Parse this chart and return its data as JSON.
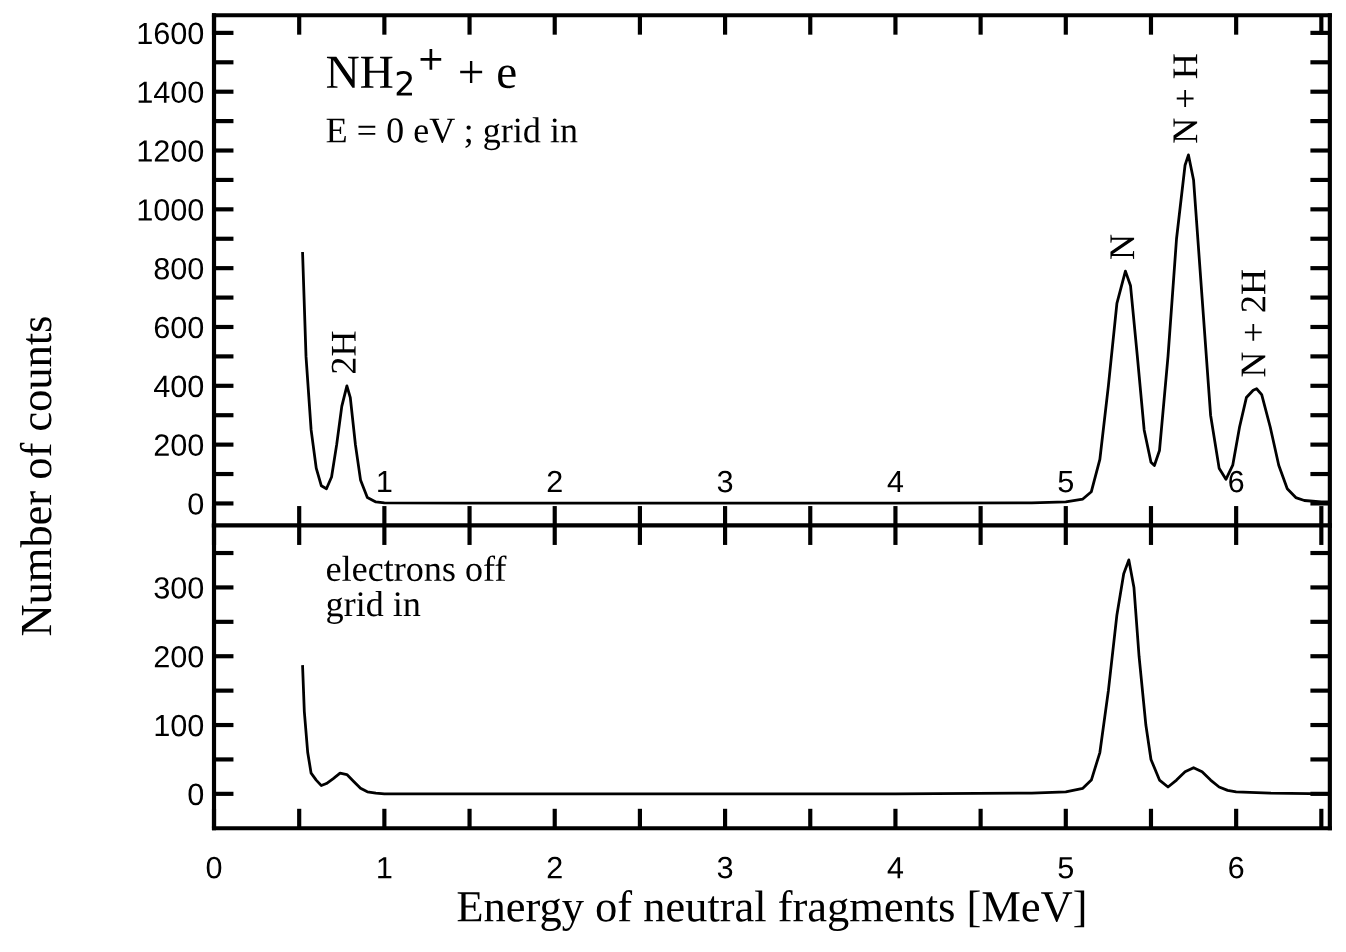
{
  "chart_data": [
    {
      "type": "line",
      "title": "NH$_{2}$$^{+}$ + e",
      "ylabel": "Number of counts",
      "annotations": [
        "E = 0 eV ; grid in",
        {
          "text": "2H",
          "x": 0.78,
          "y": 400
        },
        {
          "text": "N",
          "x": 5.35,
          "y": 790
        },
        {
          "text": "N + H",
          "x": 5.72,
          "y": 1185
        },
        {
          "text": "N + 2H",
          "x": 6.12,
          "y": 390
        }
      ],
      "series": [
        {
          "color": "#000000",
          "x": [
            0.52,
            0.54,
            0.57,
            0.6,
            0.63,
            0.66,
            0.69,
            0.72,
            0.75,
            0.78,
            0.8,
            0.83,
            0.86,
            0.9,
            0.95,
            1.0,
            1.5,
            2.0,
            3.0,
            4.0,
            4.8,
            5.0,
            5.1,
            5.15,
            5.2,
            5.25,
            5.3,
            5.35,
            5.38,
            5.42,
            5.46,
            5.5,
            5.52,
            5.55,
            5.6,
            5.65,
            5.7,
            5.72,
            5.75,
            5.8,
            5.85,
            5.9,
            5.94,
            5.98,
            6.02,
            6.06,
            6.1,
            6.12,
            6.15,
            6.2,
            6.25,
            6.3,
            6.35,
            6.4,
            6.5,
            6.55
          ],
          "values": [
            850,
            500,
            250,
            120,
            60,
            50,
            90,
            200,
            330,
            400,
            360,
            200,
            80,
            20,
            5,
            2,
            1,
            1,
            1,
            1,
            2,
            5,
            15,
            40,
            150,
            400,
            680,
            790,
            740,
            500,
            250,
            140,
            129,
            180,
            500,
            900,
            1150,
            1185,
            1100,
            700,
            300,
            120,
            82,
            130,
            260,
            360,
            385,
            390,
            370,
            260,
            130,
            50,
            20,
            10,
            5,
            5
          ]
        }
      ],
      "xlim": [
        0,
        6.55
      ],
      "xticks": [
        {
          "value": 0,
          "label": null
        },
        {
          "value": 0.5,
          "label": null
        },
        1,
        {
          "value": 1.5,
          "label": null
        },
        2,
        {
          "value": 2.5,
          "label": null
        },
        3,
        {
          "value": 3.5,
          "label": null
        },
        4,
        {
          "value": 4.5,
          "label": null
        },
        5,
        {
          "value": 5.5,
          "label": null
        },
        6,
        {
          "value": 6.5,
          "label": null
        }
      ],
      "ylim": [
        -75,
        1660
      ],
      "yticks": [
        0,
        {
          "value": 100,
          "label": null
        },
        200,
        {
          "value": 300,
          "label": null
        },
        400,
        {
          "value": 500,
          "label": null
        },
        600,
        {
          "value": 700,
          "label": null
        },
        800,
        {
          "value": 900,
          "label": null
        },
        1000,
        {
          "value": 1100,
          "label": null
        },
        1200,
        {
          "value": 1300,
          "label": null
        },
        1400,
        {
          "value": 1500,
          "label": null
        },
        1600
      ]
    },
    {
      "type": "line",
      "xlabel": "Energy of neutral fragments [MeV]",
      "annotations": [
        "electrons off\ngrid in"
      ],
      "series": [
        {
          "color": "#000000",
          "x": [
            0.52,
            0.53,
            0.55,
            0.57,
            0.6,
            0.63,
            0.66,
            0.7,
            0.74,
            0.78,
            0.82,
            0.86,
            0.9,
            0.95,
            1.0,
            2.0,
            3.0,
            4.0,
            4.8,
            5.0,
            5.1,
            5.15,
            5.2,
            5.25,
            5.3,
            5.34,
            5.37,
            5.4,
            5.43,
            5.47,
            5.5,
            5.55,
            5.6,
            5.65,
            5.7,
            5.75,
            5.8,
            5.85,
            5.9,
            5.95,
            6.0,
            6.2,
            6.55
          ],
          "values": [
            185,
            120,
            60,
            30,
            20,
            12,
            15,
            22,
            30,
            28,
            18,
            8,
            3,
            1,
            0,
            0,
            0,
            0,
            1,
            3,
            8,
            20,
            60,
            150,
            260,
            320,
            340,
            300,
            200,
            100,
            50,
            20,
            10,
            20,
            32,
            38,
            32,
            20,
            10,
            5,
            3,
            1,
            0
          ]
        }
      ],
      "xlim": [
        0,
        6.55
      ],
      "xticks": [
        0,
        {
          "value": 0.5,
          "label": null
        },
        1,
        {
          "value": 1.5,
          "label": null
        },
        2,
        {
          "value": 2.5,
          "label": null
        },
        3,
        {
          "value": 3.5,
          "label": null
        },
        4,
        {
          "value": 4.5,
          "label": null
        },
        5,
        {
          "value": 5.5,
          "label": null
        },
        6,
        {
          "value": 6.5,
          "label": null
        }
      ],
      "ylim": [
        -50,
        390
      ],
      "yticks": [
        0,
        {
          "value": 50,
          "label": null
        },
        100,
        {
          "value": 150,
          "label": null
        },
        200,
        {
          "value": 250,
          "label": null
        },
        300,
        {
          "value": 350,
          "label": null
        }
      ]
    }
  ]
}
